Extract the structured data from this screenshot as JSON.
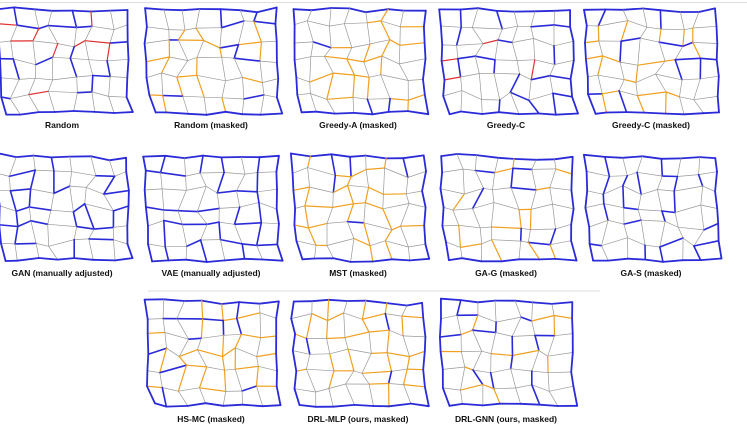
{
  "panels": [
    {
      "caption": "Random"
    },
    {
      "caption": "Random (masked)"
    },
    {
      "caption": "Greedy-A (masked)"
    },
    {
      "caption": "Greedy-C"
    },
    {
      "caption": "Greedy-C (masked)"
    },
    {
      "caption": "GAN (manually adjusted)"
    },
    {
      "caption": "VAE (manually adjusted)"
    },
    {
      "caption": "MST (masked)"
    },
    {
      "caption": "GA-G (masked)"
    },
    {
      "caption": "GA-S (masked)"
    },
    {
      "caption": "HS-MC (masked)"
    },
    {
      "caption": "DRL-MLP (ours, masked)"
    },
    {
      "caption": "DRL-GNN (ours, masked)"
    }
  ]
}
